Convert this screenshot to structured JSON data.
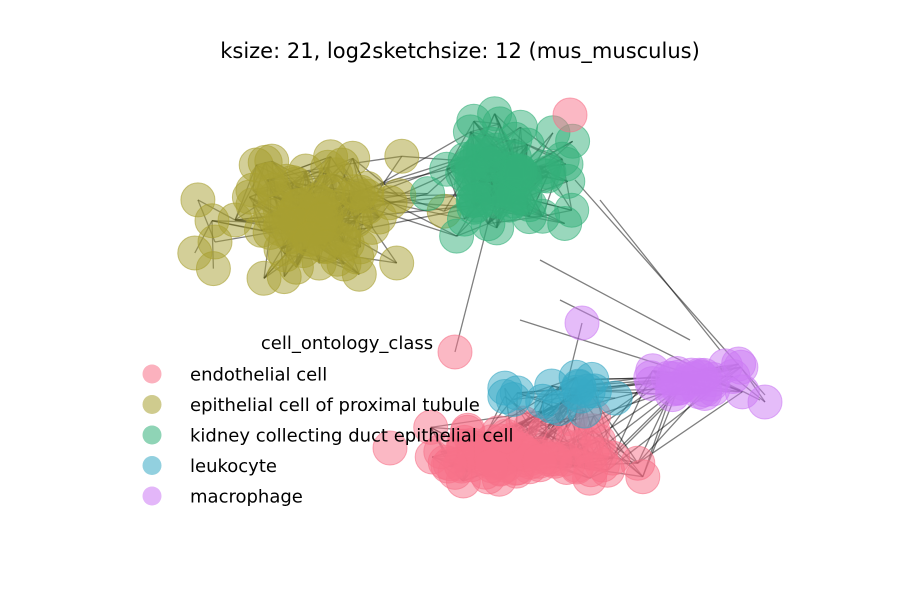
{
  "chart_data": {
    "type": "network",
    "title": "ksize: 21, log2sketchsize: 12 (mus_musculus)",
    "axes_visible": false,
    "legend": {
      "title": "cell_ontology_class",
      "placement": "center-left",
      "entries": [
        {
          "label": "endothelial cell",
          "color": "#f77189"
        },
        {
          "label": "epithelial cell of proximal tubule",
          "color": "#a8a031"
        },
        {
          "label": "kidney collecting duct epithelial cell",
          "color": "#33b07a"
        },
        {
          "label": "leukocyte",
          "color": "#38a9c5"
        },
        {
          "label": "macrophage",
          "color": "#cc7af4"
        }
      ]
    },
    "node_alpha": 0.5,
    "edge_color": "#000000",
    "edge_alpha": 0.5
  }
}
